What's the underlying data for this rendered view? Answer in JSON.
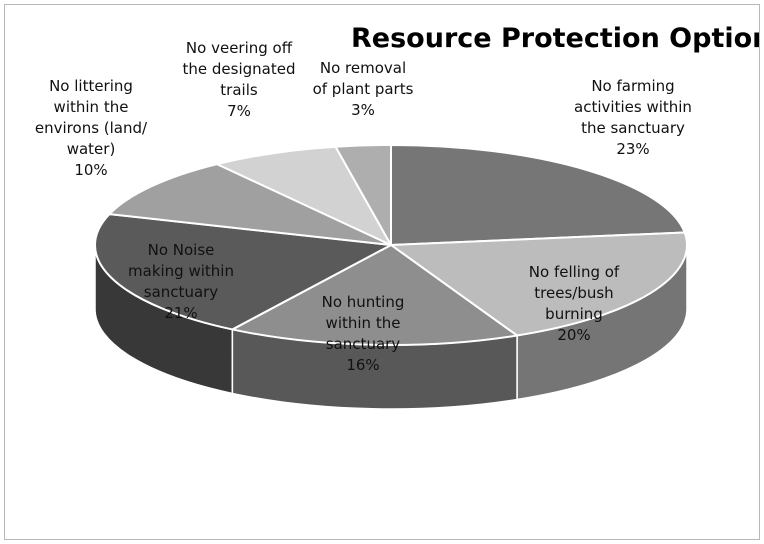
{
  "chart_data": {
    "type": "pie",
    "title": "Resource Protection Options",
    "style": "3d-exploded-pie",
    "slices": [
      {
        "label": "No farming activities within the sanctuary",
        "lines": [
          "No farming",
          "activities within",
          "the sanctuary",
          "23%"
        ],
        "value": 23,
        "color": "#767676"
      },
      {
        "label": "No felling of trees/bush burning",
        "lines": [
          "No felling of",
          "trees/bush",
          "burning",
          "20%"
        ],
        "value": 20,
        "color": "#bcbcbc"
      },
      {
        "label": "No hunting within the sanctuary",
        "lines": [
          "No hunting",
          "within the",
          "sanctuary",
          "16%"
        ],
        "value": 16,
        "color": "#8e8e8e"
      },
      {
        "label": "No Noise making within sanctuary",
        "lines": [
          "No Noise",
          "making within",
          "sanctuary",
          "21%"
        ],
        "value": 21,
        "color": "#5a5a5a"
      },
      {
        "label": "No littering within the environs (land/ water)",
        "lines": [
          "No littering",
          "within the",
          "environs (land/",
          "water)",
          "10%"
        ],
        "value": 10,
        "color": "#a0a0a0"
      },
      {
        "label": "No veering off the designated trails",
        "lines": [
          "No veering off",
          "the designated",
          "trails",
          "7%"
        ],
        "value": 7,
        "color": "#d2d2d2"
      },
      {
        "label": "No removal of plant parts",
        "lines": [
          "No removal",
          "of plant parts",
          "3%"
        ],
        "value": 3,
        "color": "#aeaeae"
      }
    ]
  }
}
